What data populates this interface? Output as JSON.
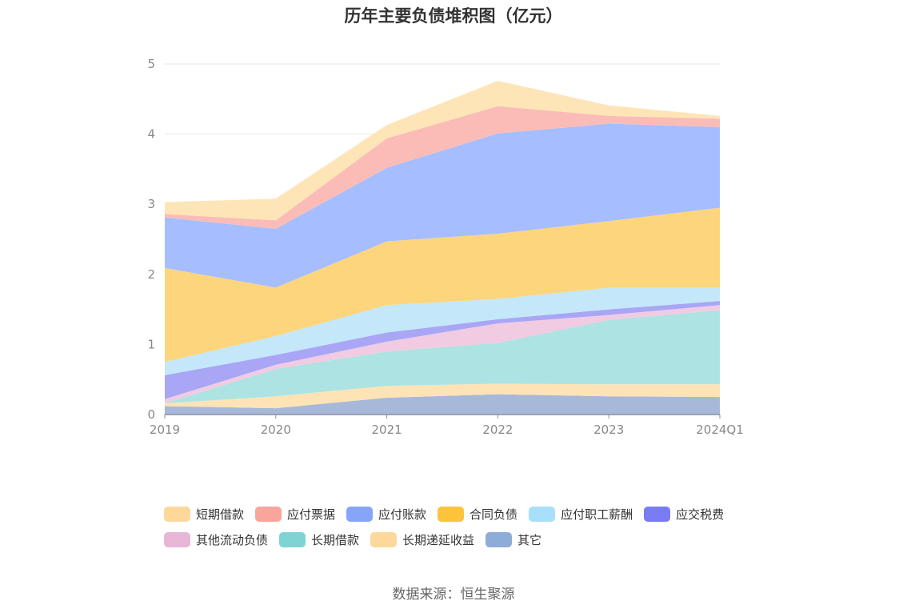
{
  "chart_data": {
    "type": "area",
    "stacked": true,
    "title": "历年主要负债堆积图（亿元）",
    "categories": [
      "2019",
      "2020",
      "2021",
      "2022",
      "2023",
      "2024Q1"
    ],
    "ylim": [
      0,
      5
    ],
    "yticks": [
      0,
      1,
      2,
      3,
      4,
      5
    ],
    "grid": true,
    "legend_position": "bottom",
    "series": [
      {
        "name": "其它",
        "color": "#a8b8d8",
        "values": [
          0.12,
          0.09,
          0.24,
          0.29,
          0.26,
          0.25
        ]
      },
      {
        "name": "长期递延收益",
        "color": "#fde3b6",
        "values": [
          0.04,
          0.17,
          0.17,
          0.15,
          0.17,
          0.18
        ]
      },
      {
        "name": "长期借款",
        "color": "#ade3e2",
        "values": [
          0.0,
          0.39,
          0.49,
          0.58,
          0.92,
          1.06
        ]
      },
      {
        "name": "其他流动负债",
        "color": "#f0cbe2",
        "values": [
          0.06,
          0.06,
          0.14,
          0.28,
          0.07,
          0.07
        ]
      },
      {
        "name": "应交税费",
        "color": "#a8a6f5",
        "values": [
          0.34,
          0.14,
          0.13,
          0.06,
          0.08,
          0.06
        ]
      },
      {
        "name": "应付职工薪酬",
        "color": "#c4e7fa",
        "values": [
          0.19,
          0.27,
          0.39,
          0.29,
          0.31,
          0.19
        ]
      },
      {
        "name": "合同负债",
        "color": "#fdd57d",
        "values": [
          1.34,
          0.69,
          0.91,
          0.93,
          0.95,
          1.14
        ]
      },
      {
        "name": "应付账款",
        "color": "#a6beff",
        "values": [
          0.72,
          0.84,
          1.05,
          1.43,
          1.39,
          1.15
        ]
      },
      {
        "name": "应付票据",
        "color": "#fbbcb7",
        "values": [
          0.05,
          0.12,
          0.42,
          0.39,
          0.11,
          0.12
        ]
      },
      {
        "name": "短期借款",
        "color": "#fee5b7",
        "values": [
          0.17,
          0.31,
          0.19,
          0.36,
          0.15,
          0.04
        ]
      }
    ],
    "source": "数据来源：恒生聚源"
  },
  "legend": [
    {
      "label": "短期借款",
      "color": "#fdd89a"
    },
    {
      "label": "应付票据",
      "color": "#f9a59c"
    },
    {
      "label": "应付账款",
      "color": "#86a5fa"
    },
    {
      "label": "合同负债",
      "color": "#fcc43a"
    },
    {
      "label": "应付职工薪酬",
      "color": "#a8dffa"
    },
    {
      "label": "应交税费",
      "color": "#7a7cf4"
    },
    {
      "label": "其他流动负债",
      "color": "#e8b7d8"
    },
    {
      "label": "长期借款",
      "color": "#80d3d3"
    },
    {
      "label": "长期递延收益",
      "color": "#fdd89a"
    },
    {
      "label": "其它",
      "color": "#8eacd8"
    }
  ]
}
